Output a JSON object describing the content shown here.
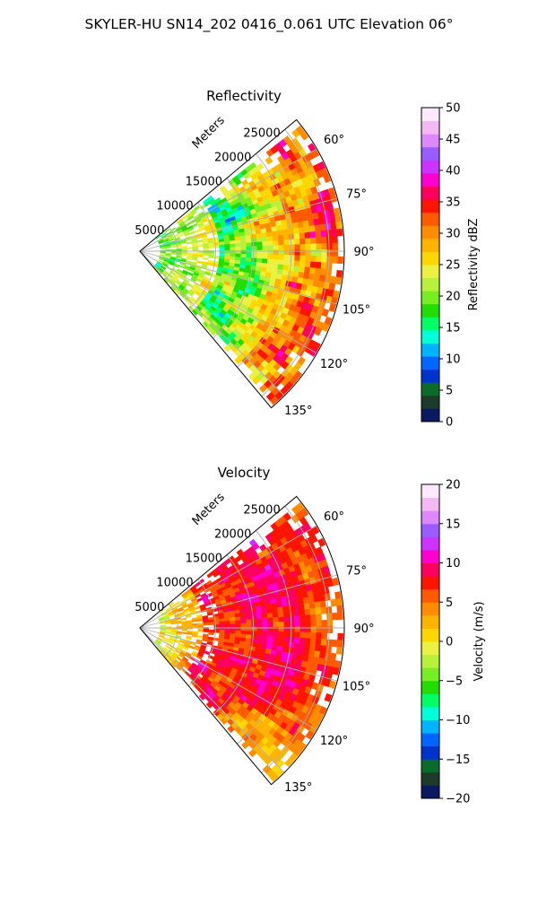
{
  "suptitle": "SKYLER-HU  SN14_202  0416_0.061 UTC Elevation 06°",
  "colors": {
    "reflectivity_scale": [
      "#0a1a5e",
      "#1e3a2a",
      "#0b6b2a",
      "#0033cc",
      "#0066ff",
      "#00b4ff",
      "#00ffd8",
      "#00ff66",
      "#22dd00",
      "#77ee22",
      "#b8f03c",
      "#ecf040",
      "#ffd700",
      "#ffb400",
      "#ff8c00",
      "#ff5a00",
      "#ff1400",
      "#ff0060",
      "#ff00d0",
      "#cc33ff",
      "#9b5cff",
      "#dd88ff",
      "#f4b8f4",
      "#fde8fd"
    ],
    "velocity_scale": [
      "#0a1a5e",
      "#1e3a2a",
      "#0b6b2a",
      "#0033cc",
      "#0066ff",
      "#00b4ff",
      "#00ffd8",
      "#00ff66",
      "#22dd00",
      "#77ee22",
      "#b8f03c",
      "#ecf040",
      "#ffd700",
      "#ffb400",
      "#ff8c00",
      "#ff5a00",
      "#ff1400",
      "#ff0060",
      "#ff00d0",
      "#cc33ff",
      "#9b5cff",
      "#dd88ff",
      "#f4b8f4",
      "#fde8fd"
    ],
    "grid": "#b0b0b0"
  },
  "chart_data": [
    {
      "type": "heatmap",
      "projection": "polar-sector",
      "title": "Reflectivity",
      "radial_label": "Meters",
      "radial_ticks": [
        5000,
        10000,
        15000,
        20000,
        25000
      ],
      "r_max": 27000,
      "angular_ticks": [
        "60°",
        "75°",
        "90°",
        "105°",
        "120°",
        "135°"
      ],
      "angular_tick_values": [
        60,
        75,
        90,
        105,
        120,
        135
      ],
      "theta_range": [
        50,
        140
      ],
      "colorbar": {
        "label": "Reflectivity dBZ",
        "range": [
          0,
          50
        ],
        "ticks": [
          "0",
          "5",
          "10",
          "15",
          "20",
          "25",
          "30",
          "35",
          "40",
          "45",
          "50"
        ]
      },
      "dominant_values": "mostly 20-30 dBZ with cells of 35-45 dBZ, weaker 10-20 dBZ near origin"
    },
    {
      "type": "heatmap",
      "projection": "polar-sector",
      "title": "Velocity",
      "radial_label": "Meters",
      "radial_ticks": [
        5000,
        10000,
        15000,
        20000,
        25000
      ],
      "r_max": 27000,
      "angular_ticks": [
        "60°",
        "75°",
        "90°",
        "105°",
        "120°",
        "135°"
      ],
      "angular_tick_values": [
        60,
        75,
        90,
        105,
        120,
        135
      ],
      "theta_range": [
        50,
        140
      ],
      "colorbar": {
        "label": "Velocity (m/s)",
        "range": [
          -20,
          20
        ],
        "ticks": [
          "−20",
          "−15",
          "−10",
          "−5",
          "0",
          "5",
          "10",
          "15",
          "20"
        ]
      },
      "dominant_values": "mostly 5-15 m/s, near 0 m/s at outer edges, negative near origin"
    }
  ]
}
